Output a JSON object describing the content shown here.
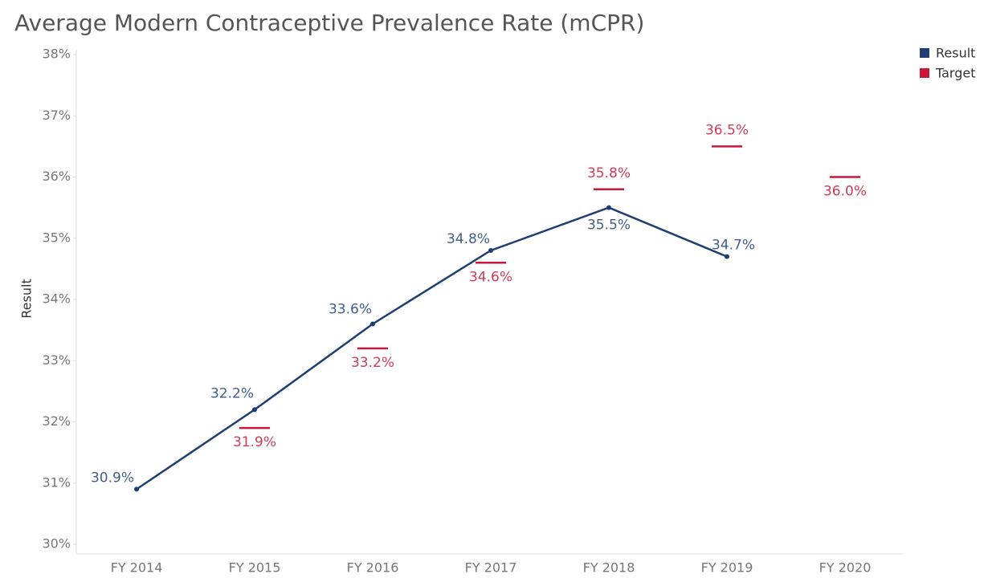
{
  "chart_data": {
    "type": "line",
    "title": "Average Modern Contraceptive Prevalence Rate (mCPR)",
    "y_label": "Result",
    "categories": [
      "FY 2014",
      "FY 2015",
      "FY 2016",
      "FY 2017",
      "FY 2018",
      "FY 2019",
      "FY 2020"
    ],
    "series": [
      {
        "name": "Result",
        "color": "#1f3f73",
        "style": "line",
        "values": [
          30.9,
          32.2,
          33.6,
          34.8,
          35.5,
          34.7,
          null
        ],
        "value_labels": [
          "30.9%",
          "32.2%",
          "33.6%",
          "34.8%",
          "35.5%",
          "34.7%",
          null
        ]
      },
      {
        "name": "Target",
        "color": "#c8173a",
        "style": "dash",
        "values": [
          null,
          31.9,
          33.2,
          34.6,
          35.8,
          36.5,
          36.0
        ],
        "value_labels": [
          null,
          "31.9%",
          "33.2%",
          "34.6%",
          "35.8%",
          "36.5%",
          "36.0%"
        ]
      }
    ],
    "ylim": [
      30,
      38
    ],
    "yticks": [
      {
        "value": 30,
        "label": "30%"
      },
      {
        "value": 31,
        "label": "31%"
      },
      {
        "value": 32,
        "label": "32%"
      },
      {
        "value": 33,
        "label": "33%"
      },
      {
        "value": 34,
        "label": "34%"
      },
      {
        "value": 35,
        "label": "35%"
      },
      {
        "value": 36,
        "label": "36%"
      },
      {
        "value": 37,
        "label": "37%"
      },
      {
        "value": 38,
        "label": "38%"
      }
    ],
    "legend_position": "top-right"
  }
}
